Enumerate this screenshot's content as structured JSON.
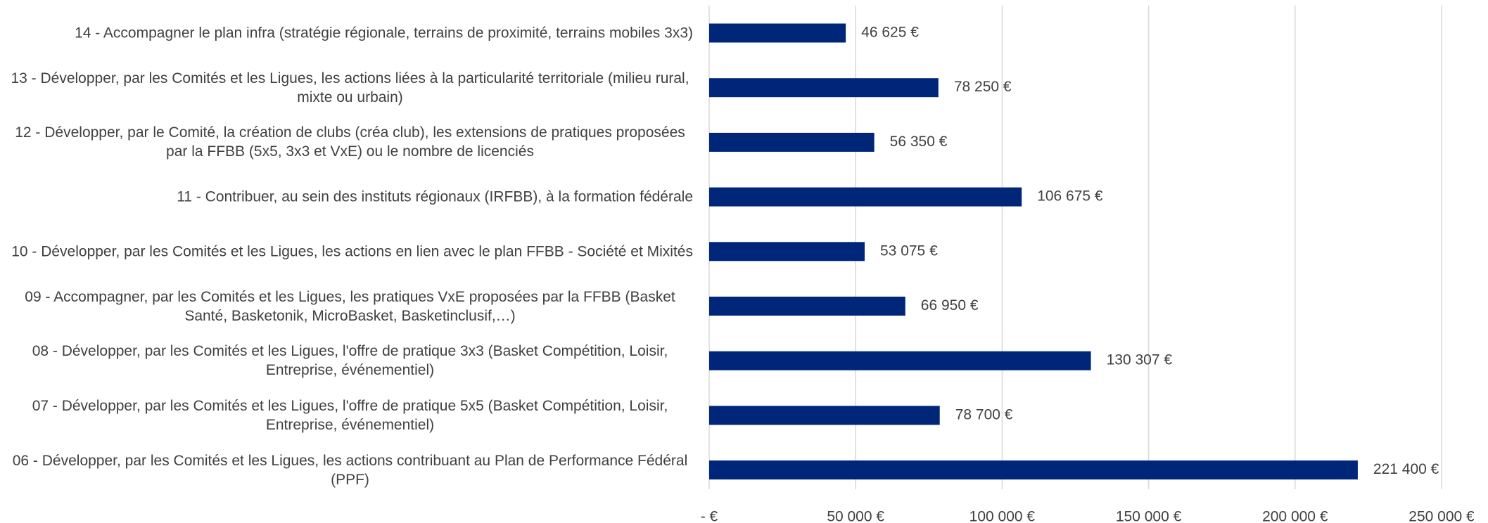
{
  "chart_data": {
    "type": "barh",
    "categories": [
      "14 - Accompagner le plan infra (stratégie régionale, terrains de proximité, terrains mobiles 3x3)",
      "13 - Développer, par les Comités et les Ligues, les actions liées à la particularité territoriale (milieu rural, mixte ou urbain)",
      "12 - Développer, par le Comité, la création de clubs (créa club), les extensions de pratiques proposées par la FFBB (5x5, 3x3 et VxE) ou le nombre de licenciés",
      "11 - Contribuer, au sein des instituts régionaux (IRFBB), à la formation fédérale",
      "10 - Développer, par les Comités et les Ligues, les actions en lien avec le plan FFBB - Société et Mixités",
      "09 - Accompagner, par les Comités et les Ligues, les pratiques VxE proposées par la FFBB (Basket Santé, Basketonik, MicroBasket, Basketinclusif,…)",
      "08 - Développer, par les Comités et les Ligues, l'offre de pratique 3x3 (Basket Compétition, Loisir, Entreprise, événementiel)",
      "07 - Développer, par les Comités et les Ligues, l'offre de pratique 5x5 (Basket Compétition, Loisir, Entreprise, événementiel)",
      "06 - Développer, par les Comités et les Ligues, les actions contribuant au Plan de Performance Fédéral (PPF)"
    ],
    "values": [
      46625,
      78250,
      56350,
      106675,
      53075,
      66950,
      130307,
      78700,
      221400
    ],
    "value_labels": [
      "46 625 €",
      "78 250 €",
      "56 350 €",
      "106 675 €",
      "53 075 €",
      "66 950 €",
      "130 307 €",
      "78 700 €",
      "221 400 €"
    ],
    "color": "#00267a",
    "xlim": [
      0,
      250000
    ],
    "xticks": [
      {
        "value": 0,
        "label": "-  €"
      },
      {
        "value": 50000,
        "label": "50 000 €"
      },
      {
        "value": 100000,
        "label": "100 000 €"
      },
      {
        "value": 150000,
        "label": "150 000 €"
      },
      {
        "value": 200000,
        "label": "200 000 €"
      },
      {
        "value": 250000,
        "label": "250 000 €"
      }
    ],
    "grid": true
  }
}
